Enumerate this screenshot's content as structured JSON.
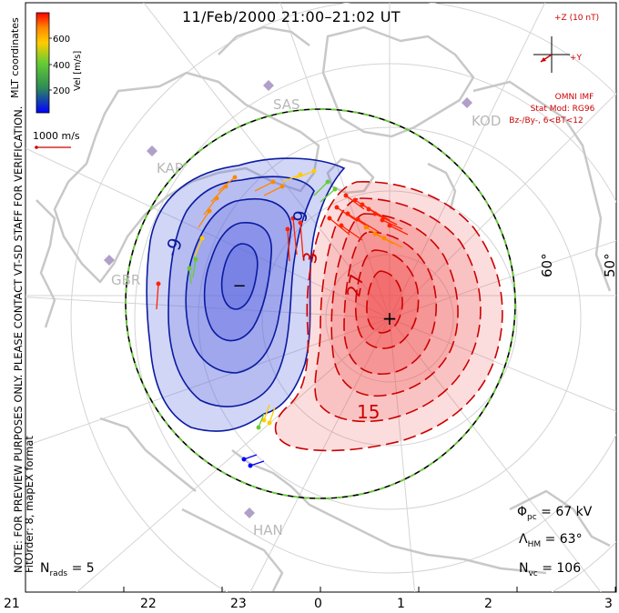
{
  "title": "11/Feb/2000 21:00–21:02 UT",
  "side_note_line1": "NOTE: FOR PREVIEW PURPOSES ONLY. PLEASE CONTACT VT-SD STAFF FOR VERIFICATION.",
  "side_note_line2": "FitOrder: 8, mapEX format",
  "mlt_coordinates": "MLT coordinates",
  "velocity_scale": {
    "label": "Vel [m/s]",
    "ticks": [
      "600",
      "400",
      "200"
    ],
    "colors": [
      "#0000ff",
      "#2e8b57",
      "#66cc33",
      "#ffcc00",
      "#ff8800",
      "#ff0000"
    ]
  },
  "reference_vector": "1000 m/s",
  "imf": {
    "plus_z": "+Z (10 nT)",
    "plus_y": "+Y",
    "model_lines": [
      "OMNI IMF",
      "Stat Mod: RG96",
      "Bz-/By-, 6<BT<12"
    ]
  },
  "stations": [
    "SAS",
    "KAP",
    "GBR",
    "KOD",
    "HAN"
  ],
  "latitude_labels": [
    "60°",
    "50°"
  ],
  "contour_labels": [
    "-9",
    "9",
    "3",
    "27",
    "15"
  ],
  "potential_markers": {
    "min": "−",
    "max": "+"
  },
  "stats": {
    "phi_pc": {
      "symbol": "Φ",
      "sub": "pc",
      "value": "= 67 kV"
    },
    "lambda_hm": {
      "symbol": "Λ",
      "sub": "HM",
      "value": "= 63°"
    },
    "n_vc": {
      "symbol": "N",
      "sub": "vc",
      "value": "= 106"
    },
    "n_rads": {
      "symbol": "N",
      "sub": "rads",
      "value": "= 5"
    }
  },
  "x_axis_ticks": [
    "21",
    "22",
    "23",
    "0",
    "1",
    "2",
    "3"
  ],
  "colors": {
    "negative_contour": "#0a1aa0",
    "negative_fill": "#5a68e0",
    "positive_contour": "#cc0000",
    "positive_fill": "#f04040",
    "boundary_dash": "#66cc33",
    "land": "#c8c8c8",
    "grid": "#d4d4d4",
    "station": "#b0a0c8"
  }
}
